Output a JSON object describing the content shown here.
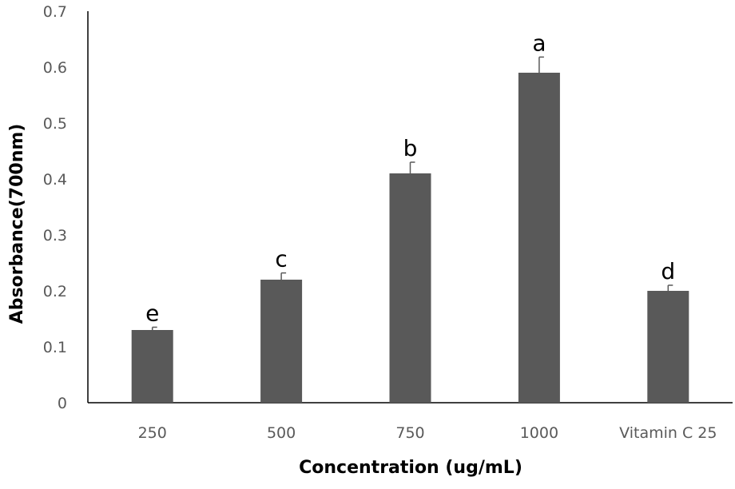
{
  "chart_data": {
    "type": "bar",
    "title": "",
    "xlabel": "Concentration (ug/mL)",
    "ylabel": "Absorbance(700nm)",
    "ylim": [
      0,
      0.7
    ],
    "yticks": [
      "0",
      "0.1",
      "0.2",
      "0.3",
      "0.4",
      "0.5",
      "0.6",
      "0.7"
    ],
    "categories": [
      "250",
      "500",
      "750",
      "1000",
      "Vitamin C 25"
    ],
    "values": [
      0.13,
      0.22,
      0.41,
      0.59,
      0.2
    ],
    "errors": [
      0.005,
      0.012,
      0.02,
      0.028,
      0.01
    ],
    "data_labels": [
      "e",
      "c",
      "b",
      "a",
      "d"
    ],
    "bar_color": "#595959",
    "axis_color": "#000000",
    "grid": false,
    "legend": "none"
  }
}
